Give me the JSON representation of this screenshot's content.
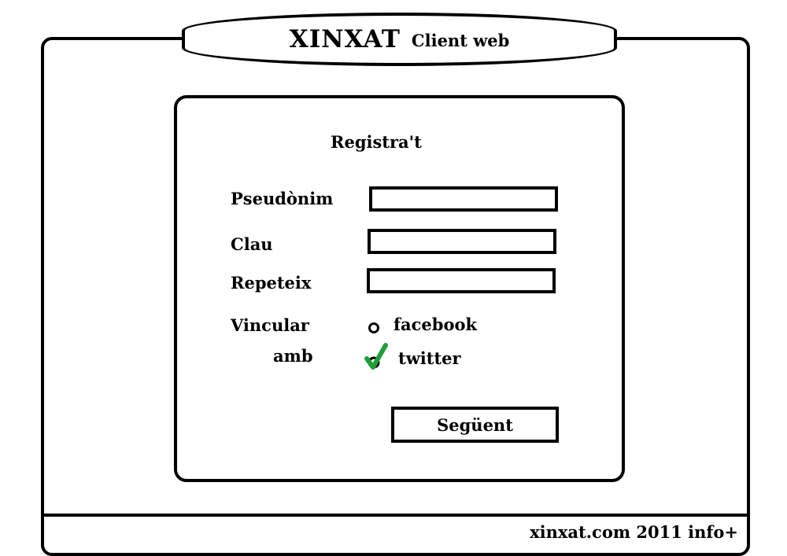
{
  "header": {
    "title": "XINXAT",
    "subtitle": "Client web"
  },
  "form": {
    "heading": "Registra't",
    "pseudonim_label": "Pseudònim",
    "pseudonim_value": "",
    "clau_label": "Clau",
    "clau_value": "",
    "repeteix_label": "Repeteix",
    "repeteix_value": "",
    "link_label_line1": "Vincular",
    "link_label_line2": "amb",
    "options": [
      {
        "label": "facebook",
        "checked": false,
        "icon": "radio-icon"
      },
      {
        "label": "twitter",
        "checked": true,
        "icon": "checkmark-icon"
      }
    ],
    "next_button": "Següent"
  },
  "footer": {
    "text": "xinxat.com 2011 info+"
  },
  "colors": {
    "check": "#1e9e3a",
    "border": "#000000",
    "background": "#ffffff"
  }
}
